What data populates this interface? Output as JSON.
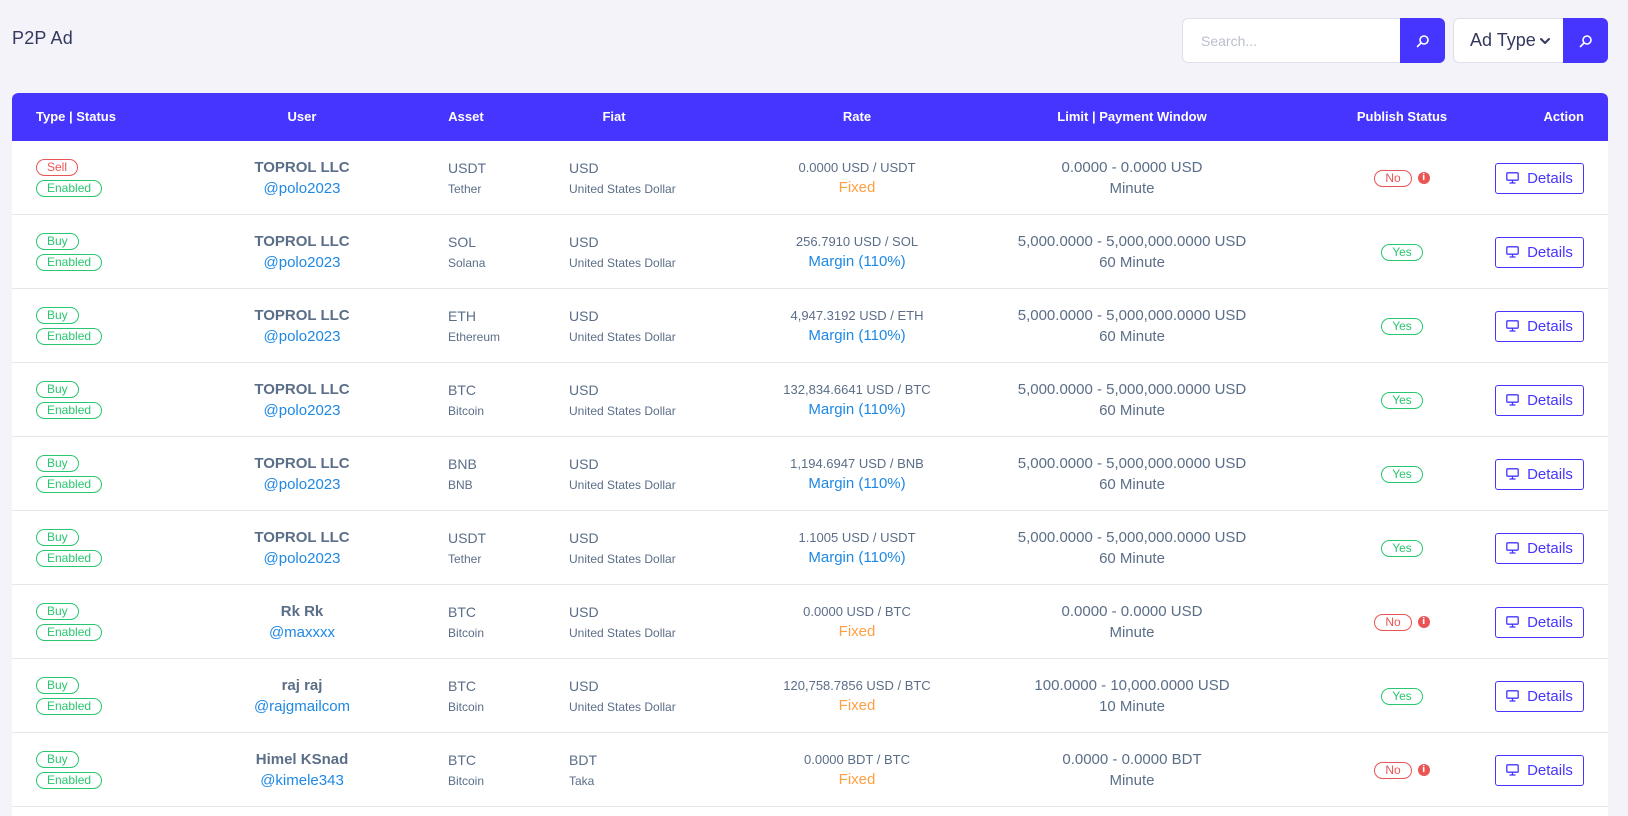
{
  "header": {
    "title": "P2P Ad",
    "search_placeholder": "Search...",
    "ad_type_label": "Ad Type"
  },
  "colors": {
    "primary": "#4634ff",
    "danger": "#ea5455",
    "success": "#28c76f",
    "link": "#1e88e5",
    "warning": "#ff9f43"
  },
  "table": {
    "headers": {
      "type_status": "Type | Status",
      "user": "User",
      "asset": "Asset",
      "fiat": "Fiat",
      "rate": "Rate",
      "limit": "Limit | Payment Window",
      "publish": "Publish Status",
      "action": "Action"
    },
    "details_label": "Details",
    "rows": [
      {
        "type": "Sell",
        "status": "Enabled",
        "user_name": "TOPROL LLC",
        "user_handle": "@polo2023",
        "asset": "USDT",
        "asset_name": "Tether",
        "fiat": "USD",
        "fiat_name": "United States Dollar",
        "rate": "0.0000 USD / USDT",
        "rate_type": "Fixed",
        "limit": "0.0000 - 0.0000 USD",
        "window": "Minute",
        "publish": "No"
      },
      {
        "type": "Buy",
        "status": "Enabled",
        "user_name": "TOPROL LLC",
        "user_handle": "@polo2023",
        "asset": "SOL",
        "asset_name": "Solana",
        "fiat": "USD",
        "fiat_name": "United States Dollar",
        "rate": "256.7910 USD / SOL",
        "rate_type": "Margin (110%)",
        "limit": "5,000.0000 - 5,000,000.0000 USD",
        "window": "60 Minute",
        "publish": "Yes"
      },
      {
        "type": "Buy",
        "status": "Enabled",
        "user_name": "TOPROL LLC",
        "user_handle": "@polo2023",
        "asset": "ETH",
        "asset_name": "Ethereum",
        "fiat": "USD",
        "fiat_name": "United States Dollar",
        "rate": "4,947.3192 USD / ETH",
        "rate_type": "Margin (110%)",
        "limit": "5,000.0000 - 5,000,000.0000 USD",
        "window": "60 Minute",
        "publish": "Yes"
      },
      {
        "type": "Buy",
        "status": "Enabled",
        "user_name": "TOPROL LLC",
        "user_handle": "@polo2023",
        "asset": "BTC",
        "asset_name": "Bitcoin",
        "fiat": "USD",
        "fiat_name": "United States Dollar",
        "rate": "132,834.6641 USD / BTC",
        "rate_type": "Margin (110%)",
        "limit": "5,000.0000 - 5,000,000.0000 USD",
        "window": "60 Minute",
        "publish": "Yes"
      },
      {
        "type": "Buy",
        "status": "Enabled",
        "user_name": "TOPROL LLC",
        "user_handle": "@polo2023",
        "asset": "BNB",
        "asset_name": "BNB",
        "fiat": "USD",
        "fiat_name": "United States Dollar",
        "rate": "1,194.6947 USD / BNB",
        "rate_type": "Margin (110%)",
        "limit": "5,000.0000 - 5,000,000.0000 USD",
        "window": "60 Minute",
        "publish": "Yes"
      },
      {
        "type": "Buy",
        "status": "Enabled",
        "user_name": "TOPROL LLC",
        "user_handle": "@polo2023",
        "asset": "USDT",
        "asset_name": "Tether",
        "fiat": "USD",
        "fiat_name": "United States Dollar",
        "rate": "1.1005 USD / USDT",
        "rate_type": "Margin (110%)",
        "limit": "5,000.0000 - 5,000,000.0000 USD",
        "window": "60 Minute",
        "publish": "Yes"
      },
      {
        "type": "Buy",
        "status": "Enabled",
        "user_name": "Rk Rk",
        "user_handle": "@maxxxx",
        "asset": "BTC",
        "asset_name": "Bitcoin",
        "fiat": "USD",
        "fiat_name": "United States Dollar",
        "rate": "0.0000 USD / BTC",
        "rate_type": "Fixed",
        "limit": "0.0000 - 0.0000 USD",
        "window": "Minute",
        "publish": "No"
      },
      {
        "type": "Buy",
        "status": "Enabled",
        "user_name": "raj raj",
        "user_handle": "@rajgmailcom",
        "asset": "BTC",
        "asset_name": "Bitcoin",
        "fiat": "USD",
        "fiat_name": "United States Dollar",
        "rate": "120,758.7856 USD / BTC",
        "rate_type": "Fixed",
        "limit": "100.0000 - 10,000.0000 USD",
        "window": "10 Minute",
        "publish": "Yes"
      },
      {
        "type": "Buy",
        "status": "Enabled",
        "user_name": "Himel KSnad",
        "user_handle": "@kimele343",
        "asset": "BTC",
        "asset_name": "Bitcoin",
        "fiat": "BDT",
        "fiat_name": "Taka",
        "rate": "0.0000 BDT / BTC",
        "rate_type": "Fixed",
        "limit": "0.0000 - 0.0000 BDT",
        "window": "Minute",
        "publish": "No"
      }
    ]
  }
}
